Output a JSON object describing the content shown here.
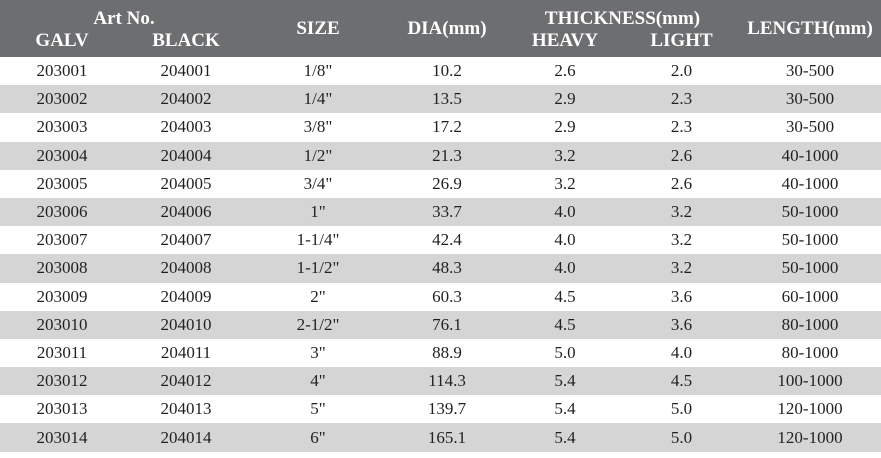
{
  "header": {
    "art_no": "Art No.",
    "galv": "GALV",
    "black": "BLACK",
    "size": "SIZE",
    "dia": "DIA(mm)",
    "thickness": "THICKNESS(mm)",
    "heavy": "HEAVY",
    "light": "LIGHT",
    "length": "LENGTH(mm)"
  },
  "rows": [
    {
      "galv": "203001",
      "black": "204001",
      "size": "1/8\"",
      "dia": "10.2",
      "heavy": "2.6",
      "light": "2.0",
      "length": "30-500"
    },
    {
      "galv": "203002",
      "black": "204002",
      "size": "1/4\"",
      "dia": "13.5",
      "heavy": "2.9",
      "light": "2.3",
      "length": "30-500"
    },
    {
      "galv": "203003",
      "black": "204003",
      "size": "3/8\"",
      "dia": "17.2",
      "heavy": "2.9",
      "light": "2.3",
      "length": "30-500"
    },
    {
      "galv": "203004",
      "black": "204004",
      "size": "1/2\"",
      "dia": "21.3",
      "heavy": "3.2",
      "light": "2.6",
      "length": "40-1000"
    },
    {
      "galv": "203005",
      "black": "204005",
      "size": "3/4\"",
      "dia": "26.9",
      "heavy": "3.2",
      "light": "2.6",
      "length": "40-1000"
    },
    {
      "galv": "203006",
      "black": "204006",
      "size": "1\"",
      "dia": "33.7",
      "heavy": "4.0",
      "light": "3.2",
      "length": "50-1000"
    },
    {
      "galv": "203007",
      "black": "204007",
      "size": "1-1/4\"",
      "dia": "42.4",
      "heavy": "4.0",
      "light": "3.2",
      "length": "50-1000"
    },
    {
      "galv": "203008",
      "black": "204008",
      "size": "1-1/2\"",
      "dia": "48.3",
      "heavy": "4.0",
      "light": "3.2",
      "length": "50-1000"
    },
    {
      "galv": "203009",
      "black": "204009",
      "size": "2\"",
      "dia": "60.3",
      "heavy": "4.5",
      "light": "3.6",
      "length": "60-1000"
    },
    {
      "galv": "203010",
      "black": "204010",
      "size": "2-1/2\"",
      "dia": "76.1",
      "heavy": "4.5",
      "light": "3.6",
      "length": "80-1000"
    },
    {
      "galv": "203011",
      "black": "204011",
      "size": "3\"",
      "dia": "88.9",
      "heavy": "5.0",
      "light": "4.0",
      "length": "80-1000"
    },
    {
      "galv": "203012",
      "black": "204012",
      "size": "4\"",
      "dia": "114.3",
      "heavy": "5.4",
      "light": "4.5",
      "length": "100-1000"
    },
    {
      "galv": "203013",
      "black": "204013",
      "size": "5\"",
      "dia": "139.7",
      "heavy": "5.4",
      "light": "5.0",
      "length": "120-1000"
    },
    {
      "galv": "203014",
      "black": "204014",
      "size": "6\"",
      "dia": "165.1",
      "heavy": "5.4",
      "light": "5.0",
      "length": "120-1000"
    }
  ],
  "colors": {
    "header_bg": "#6d6e70",
    "header_text": "#ffffff",
    "stripe": "#d5d5d6",
    "text": "#231f20"
  }
}
